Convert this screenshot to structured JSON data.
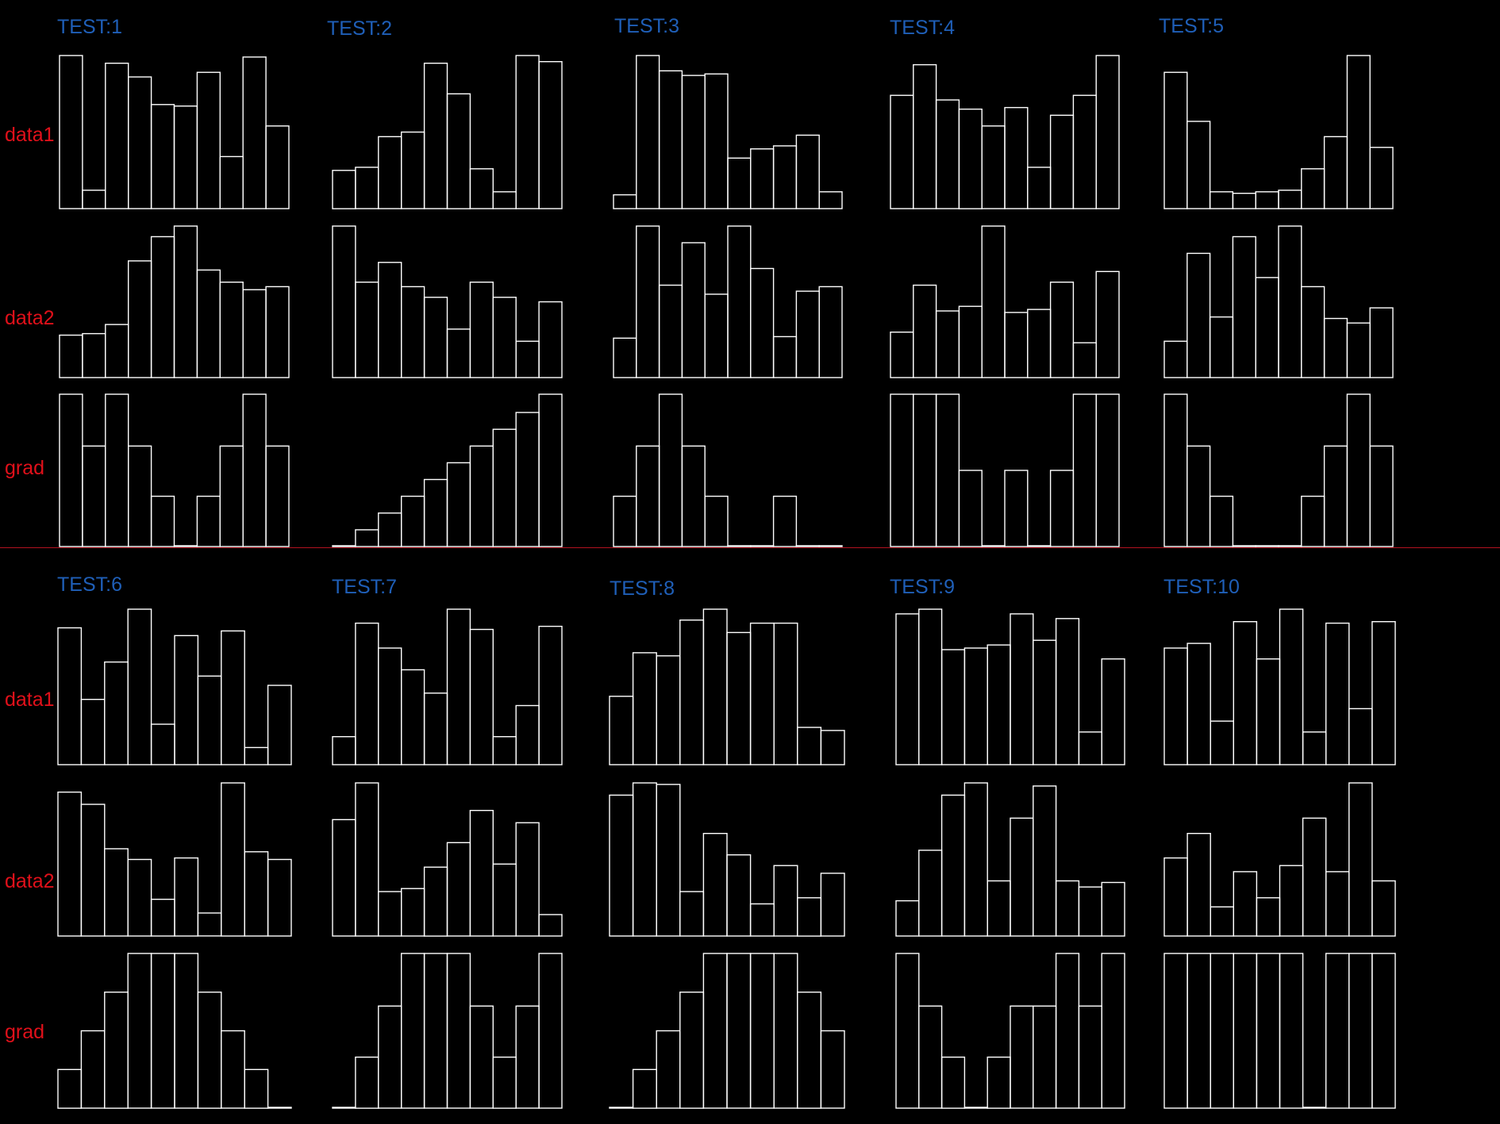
{
  "colors": {
    "background": "#000000",
    "title": "#1f5fb8",
    "row_label": "#e0101a",
    "bar_stroke": "#ffffff",
    "divider": "#b3121f"
  },
  "row_labels": [
    "data1",
    "data2",
    "grad"
  ],
  "chart_data": [
    {
      "type": "bar",
      "title": "TEST:1",
      "rows": [
        {
          "label": "data1",
          "values": [
            100,
            12,
            95,
            86,
            68,
            67,
            89,
            34,
            99,
            54
          ]
        },
        {
          "label": "data2",
          "values": [
            28,
            29,
            35,
            77,
            93,
            100,
            71,
            63,
            58,
            60
          ]
        },
        {
          "label": "grad",
          "values": [
            100,
            66,
            100,
            66,
            33,
            0,
            33,
            66,
            100,
            66
          ]
        }
      ]
    },
    {
      "type": "bar",
      "title": "TEST:2",
      "rows": [
        {
          "label": "data1",
          "values": [
            25,
            27,
            47,
            50,
            95,
            75,
            26,
            11,
            100,
            96
          ]
        },
        {
          "label": "data2",
          "values": [
            100,
            63,
            76,
            60,
            53,
            32,
            63,
            53,
            24,
            50
          ]
        },
        {
          "label": "grad",
          "values": [
            0,
            11,
            22,
            33,
            44,
            55,
            66,
            77,
            88,
            100
          ]
        }
      ]
    },
    {
      "type": "bar",
      "title": "TEST:3",
      "rows": [
        {
          "label": "data1",
          "values": [
            9,
            100,
            90,
            87,
            88,
            33,
            39,
            41,
            48,
            11
          ]
        },
        {
          "label": "data2",
          "values": [
            26,
            100,
            61,
            89,
            55,
            100,
            72,
            27,
            57,
            60
          ]
        },
        {
          "label": "grad",
          "values": [
            33,
            66,
            100,
            66,
            33,
            0,
            0,
            33,
            0,
            0
          ]
        }
      ]
    },
    {
      "type": "bar",
      "title": "TEST:4",
      "rows": [
        {
          "label": "data1",
          "values": [
            74,
            94,
            71,
            65,
            54,
            66,
            27,
            61,
            74,
            100
          ]
        },
        {
          "label": "data2",
          "values": [
            30,
            61,
            44,
            47,
            100,
            43,
            45,
            63,
            23,
            70
          ]
        },
        {
          "label": "grad",
          "values": [
            100,
            100,
            100,
            50,
            0,
            50,
            0,
            50,
            100,
            100
          ]
        }
      ]
    },
    {
      "type": "bar",
      "title": "TEST:5",
      "rows": [
        {
          "label": "data1",
          "values": [
            89,
            57,
            11,
            10,
            11,
            12,
            26,
            47,
            100,
            40
          ]
        },
        {
          "label": "data2",
          "values": [
            24,
            82,
            40,
            93,
            66,
            100,
            60,
            39,
            36,
            46
          ]
        },
        {
          "label": "grad",
          "values": [
            100,
            66,
            33,
            0,
            0,
            0,
            33,
            66,
            100,
            66
          ]
        }
      ]
    },
    {
      "type": "bar",
      "title": "TEST:6",
      "rows": [
        {
          "label": "data1",
          "values": [
            88,
            42,
            66,
            100,
            26,
            83,
            57,
            86,
            11,
            51
          ]
        },
        {
          "label": "data2",
          "values": [
            94,
            86,
            57,
            50,
            24,
            51,
            15,
            100,
            55,
            50
          ]
        },
        {
          "label": "grad",
          "values": [
            25,
            50,
            75,
            100,
            100,
            100,
            75,
            50,
            25,
            0
          ]
        }
      ]
    },
    {
      "type": "bar",
      "title": "TEST:7",
      "rows": [
        {
          "label": "data1",
          "values": [
            18,
            91,
            75,
            61,
            46,
            100,
            87,
            18,
            38,
            89
          ]
        },
        {
          "label": "data2",
          "values": [
            76,
            100,
            29,
            31,
            45,
            61,
            82,
            47,
            74,
            14
          ]
        },
        {
          "label": "grad",
          "values": [
            0,
            33,
            66,
            100,
            100,
            100,
            66,
            33,
            66,
            100
          ]
        }
      ]
    },
    {
      "type": "bar",
      "title": "TEST:8",
      "rows": [
        {
          "label": "data1",
          "values": [
            44,
            72,
            70,
            93,
            100,
            85,
            91,
            91,
            24,
            22
          ]
        },
        {
          "label": "data2",
          "values": [
            92,
            100,
            99,
            29,
            67,
            53,
            21,
            46,
            25,
            41
          ]
        },
        {
          "label": "grad",
          "values": [
            0,
            25,
            50,
            75,
            100,
            100,
            100,
            100,
            75,
            50
          ]
        }
      ]
    },
    {
      "type": "bar",
      "title": "TEST:9",
      "rows": [
        {
          "label": "data1",
          "values": [
            97,
            100,
            74,
            75,
            77,
            97,
            80,
            94,
            21,
            68
          ]
        },
        {
          "label": "data2",
          "values": [
            23,
            56,
            92,
            100,
            36,
            77,
            98,
            36,
            32,
            35
          ]
        },
        {
          "label": "grad",
          "values": [
            100,
            66,
            33,
            0,
            33,
            66,
            66,
            100,
            66,
            100
          ]
        }
      ]
    },
    {
      "type": "bar",
      "title": "TEST:10",
      "rows": [
        {
          "label": "data1",
          "values": [
            75,
            78,
            28,
            92,
            68,
            100,
            21,
            91,
            36,
            92
          ]
        },
        {
          "label": "data2",
          "values": [
            51,
            67,
            19,
            42,
            25,
            46,
            77,
            42,
            100,
            36
          ]
        },
        {
          "label": "grad",
          "values": [
            100,
            100,
            100,
            100,
            100,
            100,
            0,
            100,
            100,
            100
          ]
        }
      ]
    }
  ]
}
